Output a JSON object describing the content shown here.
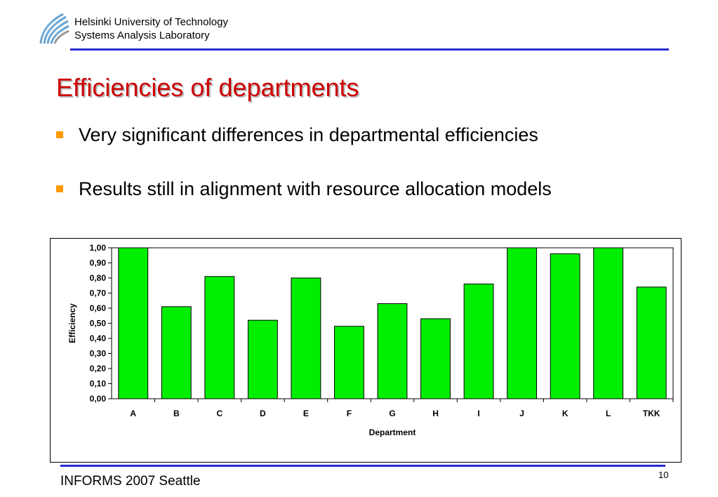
{
  "header": {
    "org_line1": "Helsinki University of Technology",
    "org_line2": "Systems Analysis Laboratory"
  },
  "slide": {
    "title": "Efficiencies of departments",
    "bullets": [
      "Very significant differences in departmental efficiencies",
      "Results still in alignment with resource allocation models"
    ]
  },
  "footer": {
    "text": "INFORMS 2007 Seattle",
    "page_number": "10"
  },
  "colors": {
    "title": "#cc0000",
    "bullet": "#ff9a00",
    "rule": "#2a2ad0",
    "bar_fill": "#00ee00"
  },
  "chart_data": {
    "type": "bar",
    "categories": [
      "A",
      "B",
      "C",
      "D",
      "E",
      "F",
      "G",
      "H",
      "I",
      "J",
      "K",
      "L",
      "TKK"
    ],
    "values": [
      1.0,
      0.61,
      0.81,
      0.52,
      0.8,
      0.48,
      0.63,
      0.53,
      0.76,
      1.0,
      0.96,
      1.0,
      0.74
    ],
    "xlabel": "Department",
    "ylabel": "Efficiency",
    "ylim": [
      0,
      1.0
    ],
    "yticks": [
      "0,00",
      "0,10",
      "0,20",
      "0,30",
      "0,40",
      "0,50",
      "0,60",
      "0,70",
      "0,80",
      "0,90",
      "1,00"
    ],
    "grid": false,
    "legend": "none"
  }
}
